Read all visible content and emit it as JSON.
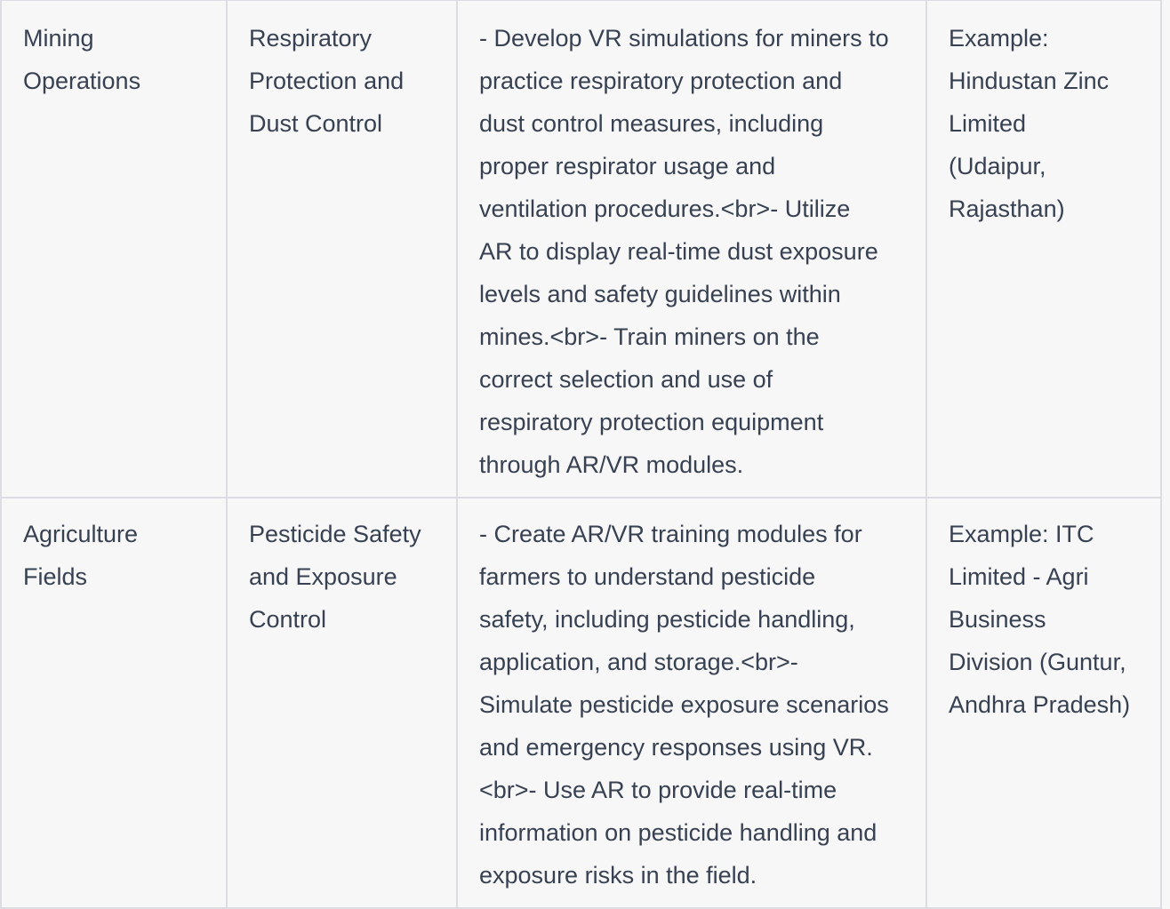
{
  "table": {
    "rows": [
      {
        "location": "Mining\nOperations",
        "focus": "Respiratory\nProtection and\nDust Control",
        "applications": "- Develop VR simulations for miners to\npractice respiratory protection and\ndust control measures, including\nproper respirator usage and\nventilation procedures.<br>- Utilize\nAR to display real-time dust exposure\nlevels and safety guidelines within\nmines.<br>- Train miners on the\ncorrect selection and use of\nrespiratory protection equipment\nthrough AR/VR modules.",
        "example": "Example:\nHindustan Zinc\nLimited\n(Udaipur,\nRajasthan)"
      },
      {
        "location": "Agriculture\nFields",
        "focus": "Pesticide Safety\nand Exposure\nControl",
        "applications": "- Create AR/VR training modules for\nfarmers to understand pesticide\nsafety, including pesticide handling,\napplication, and storage.<br>-\nSimulate pesticide exposure scenarios\nand emergency responses using VR.\n<br>- Use AR to provide real-time\ninformation on pesticide handling and\nexposure risks in the field.",
        "example": "Example: ITC\nLimited - Agri\nBusiness\nDivision (Guntur,\nAndhra Pradesh)"
      }
    ]
  }
}
